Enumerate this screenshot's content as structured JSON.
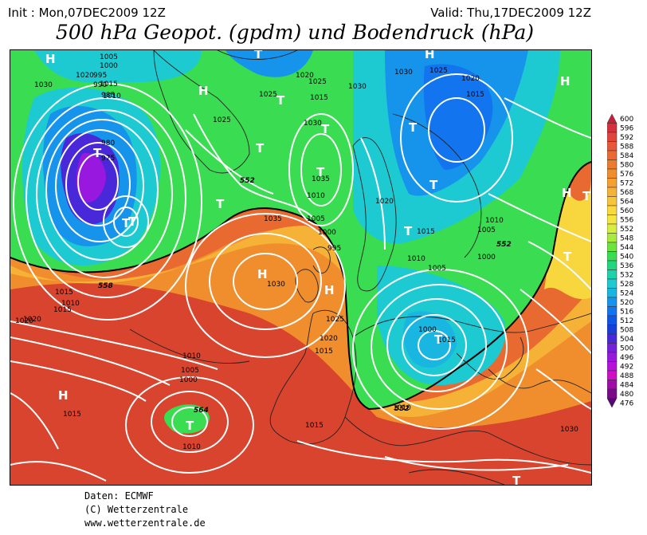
{
  "header": {
    "init": "Init : Mon,07DEC2009 12Z",
    "valid": "Valid: Thu,17DEC2009 12Z",
    "title": "500 hPa Geopot. (gpdm) und Bodendruck (hPa)"
  },
  "credits": {
    "line1": "Daten: ECMWF",
    "line2": "(C) Wetterzentrale",
    "line3": "www.wetterzentrale.de"
  },
  "legend": {
    "levels": [
      "600",
      "596",
      "592",
      "588",
      "584",
      "580",
      "576",
      "572",
      "568",
      "564",
      "560",
      "556",
      "552",
      "548",
      "544",
      "540",
      "536",
      "532",
      "528",
      "524",
      "520",
      "516",
      "512",
      "508",
      "504",
      "500",
      "496",
      "492",
      "488",
      "484",
      "480",
      "476"
    ],
    "colors": [
      "#c8203c",
      "#d8303a",
      "#e0443a",
      "#e85838",
      "#ec6a32",
      "#ee7a2e",
      "#f08e2e",
      "#f4a032",
      "#f6b236",
      "#f8c43a",
      "#fad83e",
      "#f4e63e",
      "#d8ee3e",
      "#a8ea3e",
      "#6ee23e",
      "#3adc52",
      "#20d67e",
      "#1ed2aa",
      "#1ecad2",
      "#1ab6e2",
      "#1694ec",
      "#1274ee",
      "#1056e6",
      "#1a3ed8",
      "#4828d8",
      "#7420dc",
      "#9818e0",
      "#b812d8",
      "#d00ec8",
      "#a00ca8",
      "#7a0a88",
      "#560870"
    ]
  },
  "map": {
    "pressure_labels": [
      "1030",
      "1020",
      "1015",
      "1010",
      "1005",
      "1000",
      "995",
      "990",
      "985",
      "980",
      "975",
      "1025",
      "1035",
      "1030",
      "1025",
      "1020",
      "1015",
      "1010",
      "1005",
      "1000",
      "995",
      "1030",
      "1025",
      "1020",
      "1015",
      "1010",
      "1005",
      "1000",
      "1020",
      "1015",
      "1010",
      "1020",
      "1015",
      "1010",
      "1005",
      "1000",
      "1015",
      "1010",
      "1015",
      "1025",
      "1030",
      "1020",
      "1015",
      "1010",
      "1005",
      "1000",
      "1015",
      "1030",
      "1020",
      "1015",
      "1010",
      "1025",
      "1035",
      "1030"
    ],
    "geopot_labels": [
      "552",
      "558",
      "552",
      "564",
      "552"
    ],
    "symbols": [
      "H",
      "H",
      "T",
      "T",
      "T",
      "T",
      "T",
      "T",
      "T",
      "T",
      "T",
      "H",
      "H",
      "H",
      "T",
      "H",
      "T",
      "T",
      "T",
      "T",
      "T",
      "H",
      "H",
      "T",
      "T"
    ]
  }
}
